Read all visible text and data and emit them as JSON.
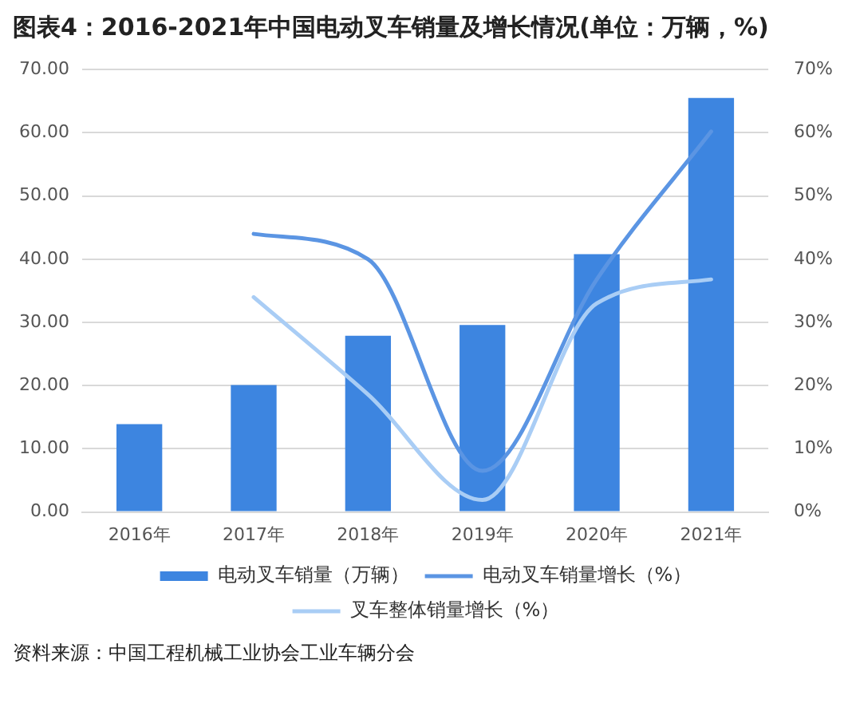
{
  "chart_data": {
    "type": "bar",
    "title": "图表4：2016-2021年中国电动叉车销量及增长情况(单位：万辆，%)",
    "categories": [
      "2016年",
      "2017年",
      "2018年",
      "2019年",
      "2020年",
      "2021年"
    ],
    "series": [
      {
        "name": "电动叉车销量（万辆）",
        "color": "#3d85e0",
        "values": [
          13.9,
          20.1,
          27.9,
          29.6,
          40.8,
          65.5
        ]
      },
      {
        "name": "电动叉车销量增长（%）",
        "type": "line",
        "axis": "y2",
        "color": "#5b95e3",
        "values": [
          null,
          44,
          40,
          6.5,
          36.8,
          60.2
        ]
      },
      {
        "name": "叉车整体销量增长（%）",
        "type": "line",
        "axis": "y2",
        "color": "#a9cdf5",
        "values": [
          null,
          34,
          18.6,
          1.9,
          33,
          36.8
        ]
      }
    ],
    "ylim": [
      0,
      70
    ],
    "yticks": [
      {
        "value": 0,
        "label": "0.00"
      },
      {
        "value": 10,
        "label": "10.00"
      },
      {
        "value": 20,
        "label": "20.00"
      },
      {
        "value": 30,
        "label": "30.00"
      },
      {
        "value": 40,
        "label": "40.00"
      },
      {
        "value": 50,
        "label": "50.00"
      },
      {
        "value": 60,
        "label": "60.00"
      },
      {
        "value": 70,
        "label": "70.00"
      }
    ],
    "y2lim": [
      0,
      70
    ],
    "y2ticks": [
      {
        "value": 0,
        "label": "0%"
      },
      {
        "value": 10,
        "label": "10%"
      },
      {
        "value": 20,
        "label": "20%"
      },
      {
        "value": 30,
        "label": "30%"
      },
      {
        "value": 40,
        "label": "40%"
      },
      {
        "value": 50,
        "label": "50%"
      },
      {
        "value": 60,
        "label": "60%"
      },
      {
        "value": 70,
        "label": "70%"
      }
    ],
    "grid": "y",
    "legend": "bottom",
    "annotations": [
      "资料来源：中国工程机械工业协会工业车辆分会"
    ]
  }
}
